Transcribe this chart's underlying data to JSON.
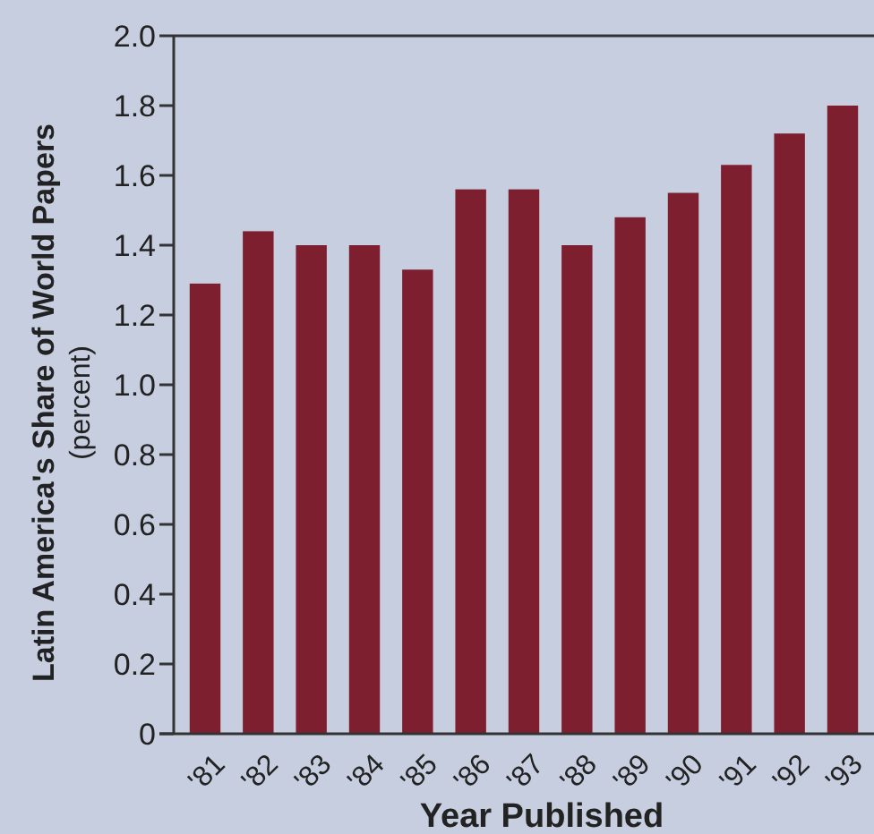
{
  "chart_data": {
    "type": "bar",
    "xlabel": "Year Published",
    "ylabel": "Latin America's Share of World Papers\n(percent)",
    "categories": [
      "'81",
      "'82",
      "'83",
      "'84",
      "'85",
      "'86",
      "'87",
      "'88",
      "'89",
      "'90",
      "'91",
      "'92",
      "'93"
    ],
    "values": [
      1.29,
      1.44,
      1.4,
      1.4,
      1.33,
      1.56,
      1.56,
      1.4,
      1.48,
      1.55,
      1.63,
      1.72,
      1.8
    ],
    "color": "#7d1f2e",
    "ylim": [
      0,
      2
    ],
    "yticks": [
      {
        "value": 0,
        "label": "0"
      },
      {
        "value": 0.2,
        "label": "0.2"
      },
      {
        "value": 0.4,
        "label": "0.4"
      },
      {
        "value": 0.6,
        "label": "0.6"
      },
      {
        "value": 0.8,
        "label": "0.8"
      },
      {
        "value": 1,
        "label": "1.0"
      },
      {
        "value": 1.2,
        "label": "1.2"
      },
      {
        "value": 1.4,
        "label": "1.4"
      },
      {
        "value": 1.6,
        "label": "1.6"
      },
      {
        "value": 1.8,
        "label": "1.8"
      },
      {
        "value": 2,
        "label": "2.0"
      }
    ],
    "grid": false
  }
}
